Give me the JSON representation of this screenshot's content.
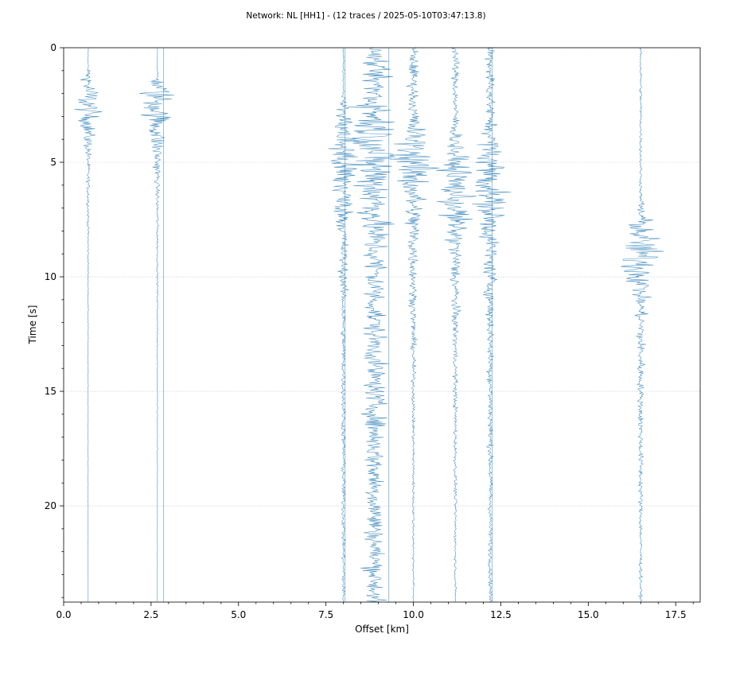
{
  "chart_data": {
    "type": "wiggle",
    "title": "Network: NL [HH1] - (12 traces / 2025-05-10T03:47:13.8)",
    "xlabel": "Offset [km]",
    "ylabel": "Time [s]",
    "xlim": [
      0.0,
      18.2
    ],
    "ylim": [
      24.2,
      0
    ],
    "y_inverted": true,
    "xticks": [
      0.0,
      2.5,
      5.0,
      7.5,
      10.0,
      12.5,
      15.0,
      17.5
    ],
    "xtick_labels": [
      "0.0",
      "2.5",
      "5.0",
      "7.5",
      "10.0",
      "12.5",
      "15.0",
      "17.5"
    ],
    "yticks": [
      0,
      5,
      10,
      15,
      20
    ],
    "ytick_labels": [
      "0",
      "5",
      "10",
      "15",
      "20"
    ],
    "grid": "horizontal",
    "trace_color": "#1f77b4",
    "traces": [
      {
        "offset": 0.7,
        "start": 0.0,
        "end": 24.2,
        "energy": [
          [
            0.9,
            0.03
          ],
          [
            2.3,
            0.9
          ],
          [
            3.3,
            0.5
          ],
          [
            5.0,
            0.12
          ],
          [
            8.0,
            0.06
          ],
          [
            11.5,
            0.02
          ],
          [
            24.2,
            0.0
          ]
        ]
      },
      {
        "offset": 2.68,
        "start": 0.0,
        "end": 24.2,
        "energy": [
          [
            1.1,
            0.02
          ],
          [
            2.0,
            1.1
          ],
          [
            3.0,
            0.8
          ],
          [
            4.5,
            0.4
          ],
          [
            6.0,
            0.12
          ],
          [
            9.0,
            0.05
          ],
          [
            24.2,
            0.0
          ]
        ]
      },
      {
        "offset": 2.85,
        "start": 0.0,
        "end": 24.2,
        "energy": [
          [
            0.0,
            0.0
          ],
          [
            24.2,
            0.0
          ]
        ]
      },
      {
        "offset": 8.0,
        "start": 0.0,
        "end": 24.2,
        "energy": [
          [
            2.0,
            0.05
          ],
          [
            4.5,
            1.2
          ],
          [
            5.5,
            1.0
          ],
          [
            8.0,
            0.35
          ],
          [
            12.0,
            0.15
          ],
          [
            24.2,
            0.1
          ]
        ]
      },
      {
        "offset": 8.05,
        "start": 0.0,
        "end": 24.2,
        "energy": [
          [
            0.0,
            0.0
          ],
          [
            24.2,
            0.0
          ]
        ]
      },
      {
        "offset": 8.9,
        "start": 0.0,
        "end": 24.2,
        "energy": [
          [
            0.3,
            0.5
          ],
          [
            3.0,
            1.3
          ],
          [
            5.0,
            1.5
          ],
          [
            8.0,
            0.9
          ],
          [
            12.0,
            0.65
          ],
          [
            20.0,
            0.6
          ],
          [
            24.2,
            0.6
          ]
        ]
      },
      {
        "offset": 9.3,
        "start": 0.0,
        "end": 24.2,
        "energy": [
          [
            0.0,
            0.0
          ],
          [
            24.2,
            0.0
          ]
        ]
      },
      {
        "offset": 10.0,
        "start": 0.0,
        "end": 24.2,
        "energy": [
          [
            2.8,
            0.3
          ],
          [
            5.0,
            1.4
          ],
          [
            7.0,
            0.6
          ],
          [
            10.0,
            0.25
          ],
          [
            15.0,
            0.1
          ],
          [
            24.2,
            0.05
          ]
        ]
      },
      {
        "offset": 11.2,
        "start": 0.0,
        "end": 24.2,
        "energy": [
          [
            3.0,
            0.2
          ],
          [
            5.5,
            0.9
          ],
          [
            7.0,
            1.0
          ],
          [
            9.0,
            0.4
          ],
          [
            13.0,
            0.15
          ],
          [
            24.2,
            0.05
          ]
        ]
      },
      {
        "offset": 12.2,
        "start": 0.0,
        "end": 24.2,
        "energy": [
          [
            3.2,
            0.3
          ],
          [
            5.5,
            1.1
          ],
          [
            7.0,
            0.9
          ],
          [
            9.0,
            0.45
          ],
          [
            13.0,
            0.2
          ],
          [
            24.2,
            0.1
          ]
        ]
      },
      {
        "offset": 12.25,
        "start": 0.0,
        "end": 24.2,
        "energy": [
          [
            0.0,
            0.0
          ],
          [
            24.2,
            0.0
          ]
        ]
      },
      {
        "offset": 16.5,
        "start": 0.0,
        "end": 24.2,
        "energy": [
          [
            6.5,
            0.08
          ],
          [
            8.5,
            1.2
          ],
          [
            9.6,
            1.3
          ],
          [
            11.0,
            0.4
          ],
          [
            15.0,
            0.18
          ],
          [
            24.2,
            0.08
          ]
        ]
      }
    ]
  }
}
